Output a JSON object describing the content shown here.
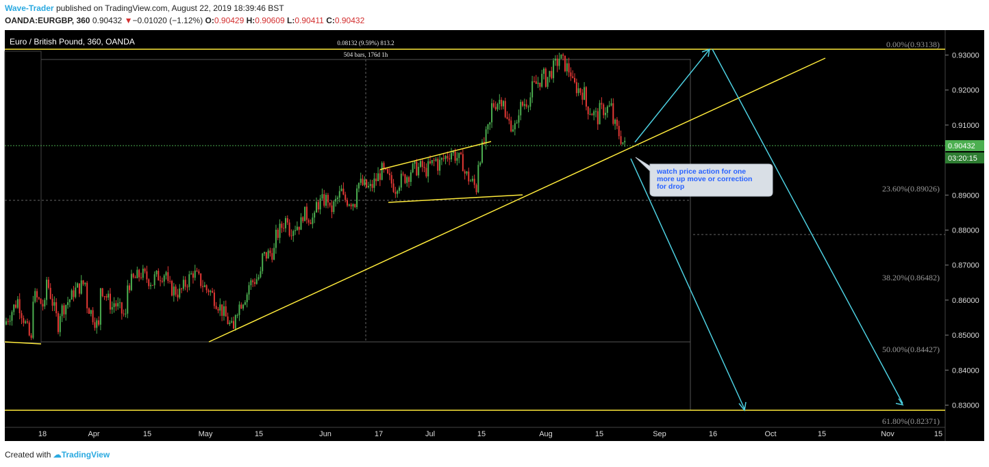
{
  "header": {
    "author": "Wave-Trader",
    "published": "published on TradingView.com, August 22, 2019 18:39:46 BST",
    "symbol": "OANDA:EURGBP, 360",
    "price": "0.90432",
    "change_arrow": "▼",
    "change": "−0.01020 (−1.12%)",
    "o_label": "O:",
    "o_value": "0.90429",
    "h_label": "H:",
    "h_value": "0.90609",
    "l_label": "L:",
    "l_value": "0.90411",
    "c_label": "C:",
    "c_value": "0.90432"
  },
  "footer": {
    "created_with": "Created with",
    "brand": "TradingView"
  },
  "colors": {
    "background": "#000000",
    "bull": "#4caf50",
    "bear": "#e53935",
    "trendline": "#ffeb3b",
    "projection": "#4dd0e1",
    "last_price": "#4caf50"
  },
  "chart_data": {
    "type": "candlestick",
    "title": "Euro / British Pound, 360, OANDA",
    "ylim": [
      0.8235,
      0.935
    ],
    "y_ticks": [
      "0.93000",
      "0.92000",
      "0.91000",
      "0.90000",
      "0.89000",
      "0.88000",
      "0.87000",
      "0.86000",
      "0.85000",
      "0.84000",
      "0.83000"
    ],
    "x_ticks": [
      "18",
      "Apr",
      "15",
      "May",
      "15",
      "Jun",
      "17",
      "Jul",
      "15",
      "Aug",
      "15",
      "Sep",
      "16",
      "Oct",
      "15",
      "Nov",
      "15"
    ],
    "last_price": "0.90432",
    "countdown": "03:20:15",
    "fib_levels": [
      {
        "label": "0.00%(0.93138)",
        "value": 0.93138
      },
      {
        "label": "23.60%(0.89026)",
        "value": 0.89026
      },
      {
        "label": "38.20%(0.86482)",
        "value": 0.86482
      },
      {
        "label": "50.00%(0.84427)",
        "value": 0.84427
      },
      {
        "label": "61.80%(0.82371)",
        "value": 0.82371
      }
    ],
    "measure_label_1": "0.08132 (9.59%) 813.2",
    "measure_label_2": "504 bars, 176d 1h",
    "annotation": "watch price action for one more up move or correction for drop",
    "price_path": [
      [
        0.853,
        0.86
      ],
      [
        0.86,
        0.848
      ],
      [
        0.862,
        0.858
      ],
      [
        0.868,
        0.853
      ],
      [
        0.856,
        0.861
      ],
      [
        0.862,
        0.865
      ],
      [
        0.86,
        0.852
      ],
      [
        0.865,
        0.858
      ],
      [
        0.86,
        0.855
      ],
      [
        0.864,
        0.867
      ],
      [
        0.868,
        0.865
      ],
      [
        0.866,
        0.868
      ],
      [
        0.864,
        0.862
      ],
      [
        0.862,
        0.868
      ],
      [
        0.868,
        0.863
      ],
      [
        0.864,
        0.858
      ],
      [
        0.858,
        0.851
      ],
      [
        0.856,
        0.862
      ],
      [
        0.864,
        0.867
      ],
      [
        0.872,
        0.874
      ],
      [
        0.877,
        0.884
      ],
      [
        0.88,
        0.882
      ],
      [
        0.885,
        0.883
      ],
      [
        0.887,
        0.889
      ],
      [
        0.884,
        0.891
      ],
      [
        0.889,
        0.888
      ],
      [
        0.894,
        0.892
      ],
      [
        0.891,
        0.897
      ],
      [
        0.897,
        0.892
      ],
      [
        0.893,
        0.896
      ],
      [
        0.897,
        0.898
      ],
      [
        0.896,
        0.9
      ],
      [
        0.898,
        0.902
      ],
      [
        0.903,
        0.899
      ],
      [
        0.897,
        0.892
      ],
      [
        0.898,
        0.91
      ],
      [
        0.915,
        0.918
      ],
      [
        0.912,
        0.909
      ],
      [
        0.914,
        0.918
      ],
      [
        0.92,
        0.924
      ],
      [
        0.922,
        0.928
      ],
      [
        0.93,
        0.925
      ],
      [
        0.922,
        0.919
      ],
      [
        0.916,
        0.912
      ],
      [
        0.914,
        0.915
      ],
      [
        0.912,
        0.904
      ]
    ]
  }
}
